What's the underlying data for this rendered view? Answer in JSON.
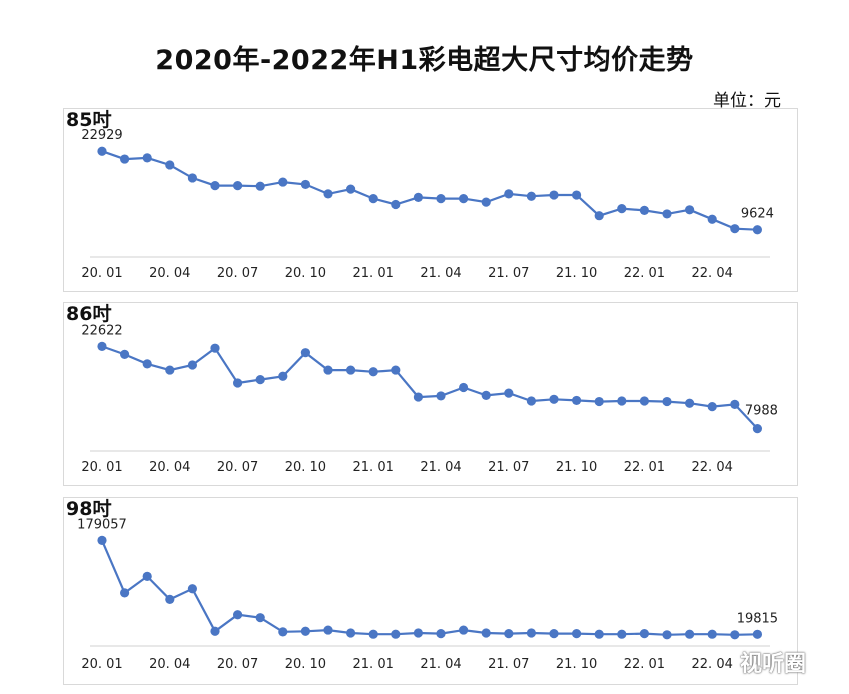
{
  "title": "2020年-2022年H1彩电超大尺寸均价走势",
  "unit": "单位：元",
  "watermark": "视听圈",
  "series_color": "#4a76c4",
  "chart_data": [
    {
      "type": "line",
      "label": "85吋",
      "x": [
        "20.01",
        "20.02",
        "20.03",
        "20.04",
        "20.05",
        "20.06",
        "20.07",
        "20.08",
        "20.09",
        "20.10",
        "20.11",
        "20.12",
        "21.01",
        "21.02",
        "21.03",
        "21.04",
        "21.05",
        "21.06",
        "21.07",
        "21.08",
        "21.09",
        "21.10",
        "21.11",
        "21.12",
        "22.01",
        "22.02",
        "22.03",
        "22.04",
        "22.05",
        "22.06"
      ],
      "tick_labels": [
        "20.01",
        "20.04",
        "20.07",
        "20.10",
        "21.01",
        "21.04",
        "21.07",
        "21.10",
        "22.01",
        "22.04"
      ],
      "values": [
        22929,
        21600,
        21800,
        20600,
        18400,
        17100,
        17100,
        17000,
        17700,
        17300,
        15700,
        16500,
        14900,
        13900,
        15100,
        14900,
        14900,
        14300,
        15700,
        15300,
        15500,
        15500,
        12000,
        13200,
        12900,
        12300,
        13000,
        11400,
        9800,
        9624
      ],
      "ylim": [
        5000,
        25000
      ],
      "data_labels": [
        {
          "index": 0,
          "text": "22929",
          "pos": "above"
        },
        {
          "index": 29,
          "text": "9624",
          "pos": "above"
        }
      ]
    },
    {
      "type": "line",
      "label": "86吋",
      "x": [
        "20.01",
        "20.02",
        "20.03",
        "20.04",
        "20.05",
        "20.06",
        "20.07",
        "20.08",
        "20.09",
        "20.10",
        "20.11",
        "20.12",
        "21.01",
        "21.02",
        "21.03",
        "21.04",
        "21.05",
        "21.06",
        "21.07",
        "21.08",
        "21.09",
        "21.10",
        "21.11",
        "21.12",
        "22.01",
        "22.02",
        "22.03",
        "22.04",
        "22.05",
        "22.06"
      ],
      "tick_labels": [
        "20.01",
        "20.04",
        "20.07",
        "20.10",
        "21.01",
        "21.04",
        "21.07",
        "21.10",
        "22.01",
        "22.04"
      ],
      "values": [
        22622,
        21200,
        19500,
        18400,
        19300,
        22300,
        16100,
        16700,
        17300,
        21500,
        18400,
        18400,
        18100,
        18400,
        13600,
        13800,
        15300,
        13900,
        14300,
        12900,
        13200,
        13000,
        12800,
        12900,
        12900,
        12800,
        12500,
        11900,
        12300,
        7988
      ],
      "ylim": [
        4000,
        25000
      ],
      "data_labels": [
        {
          "index": 0,
          "text": "22622",
          "pos": "above"
        },
        {
          "index": 29,
          "text": "7988",
          "pos": "above-right"
        }
      ]
    },
    {
      "type": "line",
      "label": "98吋",
      "x": [
        "20.01",
        "20.02",
        "20.03",
        "20.04",
        "20.05",
        "20.06",
        "20.07",
        "20.08",
        "20.09",
        "20.10",
        "20.11",
        "20.12",
        "21.01",
        "21.02",
        "21.03",
        "21.04",
        "21.05",
        "21.06",
        "21.07",
        "21.08",
        "21.09",
        "21.10",
        "21.11",
        "21.12",
        "22.01",
        "22.02",
        "22.03",
        "22.04",
        "22.05",
        "22.06"
      ],
      "tick_labels": [
        "20.01",
        "20.04",
        "20.07",
        "20.10",
        "21.01",
        "21.04",
        "21.07",
        "21.10",
        "22.01",
        "22.04"
      ],
      "values": [
        179057,
        90000,
        118000,
        79000,
        97000,
        25000,
        53000,
        48000,
        24000,
        25000,
        27000,
        22000,
        20000,
        20000,
        22000,
        21000,
        27000,
        22000,
        21000,
        22000,
        21000,
        21000,
        20000,
        20000,
        21000,
        19000,
        20000,
        20000,
        19000,
        19815
      ],
      "ylim": [
        0,
        200000
      ],
      "data_labels": [
        {
          "index": 0,
          "text": "179057",
          "pos": "above"
        },
        {
          "index": 29,
          "text": "19815",
          "pos": "above"
        }
      ]
    }
  ]
}
